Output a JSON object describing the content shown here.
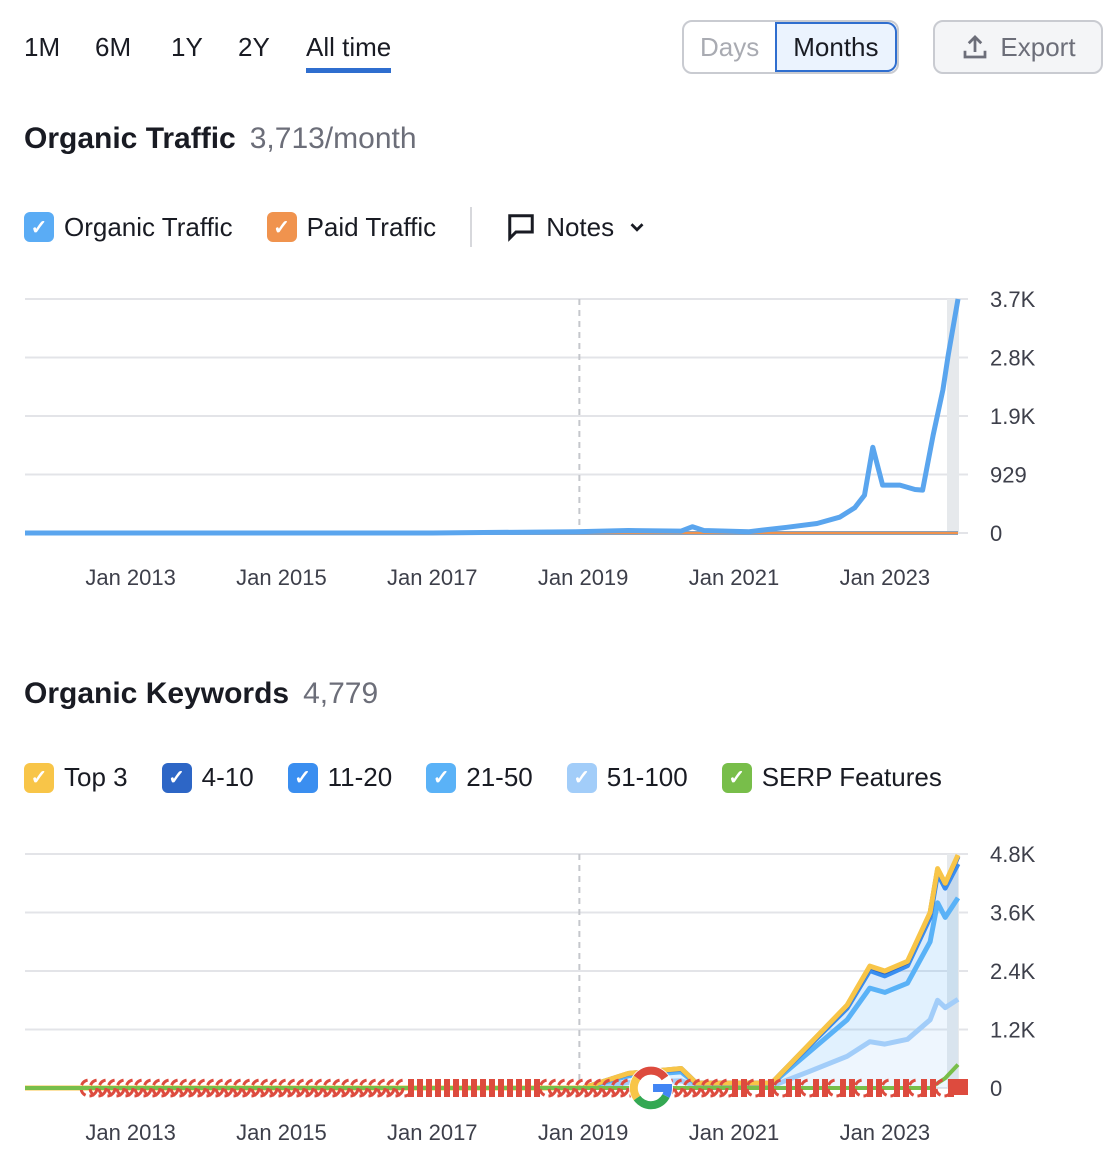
{
  "ranges": [
    "1M",
    "6M",
    "1Y",
    "2Y",
    "All time"
  ],
  "active_range": "All time",
  "granularity": {
    "days": "Days",
    "months": "Months",
    "selected": "Months"
  },
  "export_label": "Export",
  "traffic": {
    "title": "Organic Traffic",
    "value": "3,713/month",
    "legend": [
      {
        "label": "Organic Traffic",
        "color": "#5aacf5",
        "checked": true
      },
      {
        "label": "Paid Traffic",
        "color": "#f0934e",
        "checked": true
      }
    ],
    "notes_label": "Notes"
  },
  "keywords": {
    "title": "Organic Keywords",
    "value": "4,779",
    "legend": [
      {
        "label": "Top 3",
        "color": "#f8c548"
      },
      {
        "label": "4-10",
        "color": "#2d66c6"
      },
      {
        "label": "11-20",
        "color": "#3a8ef0"
      },
      {
        "label": "21-50",
        "color": "#5ab2f7"
      },
      {
        "label": "51-100",
        "color": "#a2cdf9"
      },
      {
        "label": "SERP Features",
        "color": "#78be4a"
      }
    ]
  },
  "chart_data": [
    {
      "type": "line",
      "ylim": [
        0,
        3713
      ],
      "yticks": [
        "3.7K",
        "2.8K",
        "1.9K",
        "929",
        "0"
      ],
      "xticks": [
        "Jan 2013",
        "Jan 2015",
        "Jan 2017",
        "Jan 2019",
        "Jan 2021",
        "Jan 2023"
      ],
      "grid": true,
      "series": [
        {
          "name": "Organic Traffic",
          "color": "#5aa5ee",
          "x": [
            2011.6,
            2017.0,
            2018.9,
            2019.6,
            2020.3,
            2020.45,
            2020.6,
            2021.2,
            2021.7,
            2022.1,
            2022.4,
            2022.6,
            2022.73,
            2022.84,
            2022.97,
            2023.2,
            2023.4,
            2023.5,
            2023.64,
            2023.77,
            2023.84,
            2023.97
          ],
          "y": [
            0,
            0,
            20,
            40,
            30,
            100,
            40,
            20,
            90,
            150,
            250,
            400,
            600,
            1360,
            760,
            760,
            690,
            680,
            1550,
            2270,
            2820,
            3713
          ]
        },
        {
          "name": "Paid Traffic",
          "color": "#f0934e",
          "x": [
            2011.6,
            2023.97
          ],
          "y": [
            0,
            0
          ]
        }
      ]
    },
    {
      "type": "area",
      "stacked": true,
      "ylim": [
        0,
        4800
      ],
      "yticks": [
        "4.8K",
        "3.6K",
        "2.4K",
        "1.2K",
        "0"
      ],
      "xticks": [
        "Jan 2013",
        "Jan 2015",
        "Jan 2017",
        "Jan 2019",
        "Jan 2021",
        "Jan 2023"
      ],
      "grid": true,
      "x": [
        2011.6,
        2019.0,
        2019.6,
        2020.3,
        2020.5,
        2021.5,
        2022.0,
        2022.5,
        2022.8,
        2023.0,
        2023.3,
        2023.6,
        2023.7,
        2023.8,
        2023.97
      ],
      "series": [
        {
          "name": "51-100",
          "color": "#a2cdf9",
          "values": [
            0,
            0,
            110,
            150,
            40,
            40,
            340,
            650,
            950,
            900,
            1000,
            1400,
            1800,
            1650,
            1820
          ]
        },
        {
          "name": "21-50",
          "color": "#5ab2f7",
          "values": [
            0,
            0,
            140,
            180,
            45,
            45,
            400,
            750,
            1100,
            1060,
            1150,
            1600,
            2000,
            1850,
            2080
          ]
        },
        {
          "name": "11-20",
          "color": "#3a8ef0",
          "values": [
            0,
            0,
            40,
            55,
            12,
            12,
            130,
            240,
            360,
            340,
            360,
            500,
            600,
            600,
            700
          ]
        },
        {
          "name": "4-10",
          "color": "#2d66c6",
          "values": [
            0,
            0,
            8,
            12,
            3,
            3,
            25,
            50,
            75,
            80,
            75,
            85,
            80,
            90,
            150
          ]
        },
        {
          "name": "Top 3",
          "color": "#f8c548",
          "values": [
            0,
            0,
            2,
            3,
            0,
            0,
            5,
            10,
            15,
            20,
            15,
            15,
            20,
            10,
            29
          ]
        }
      ],
      "serp": {
        "name": "SERP Features",
        "color": "#78be4a",
        "x": [
          2011.6,
          2023.6,
          2023.8,
          2023.97
        ],
        "values": [
          0,
          0,
          200,
          480
        ]
      }
    }
  ]
}
